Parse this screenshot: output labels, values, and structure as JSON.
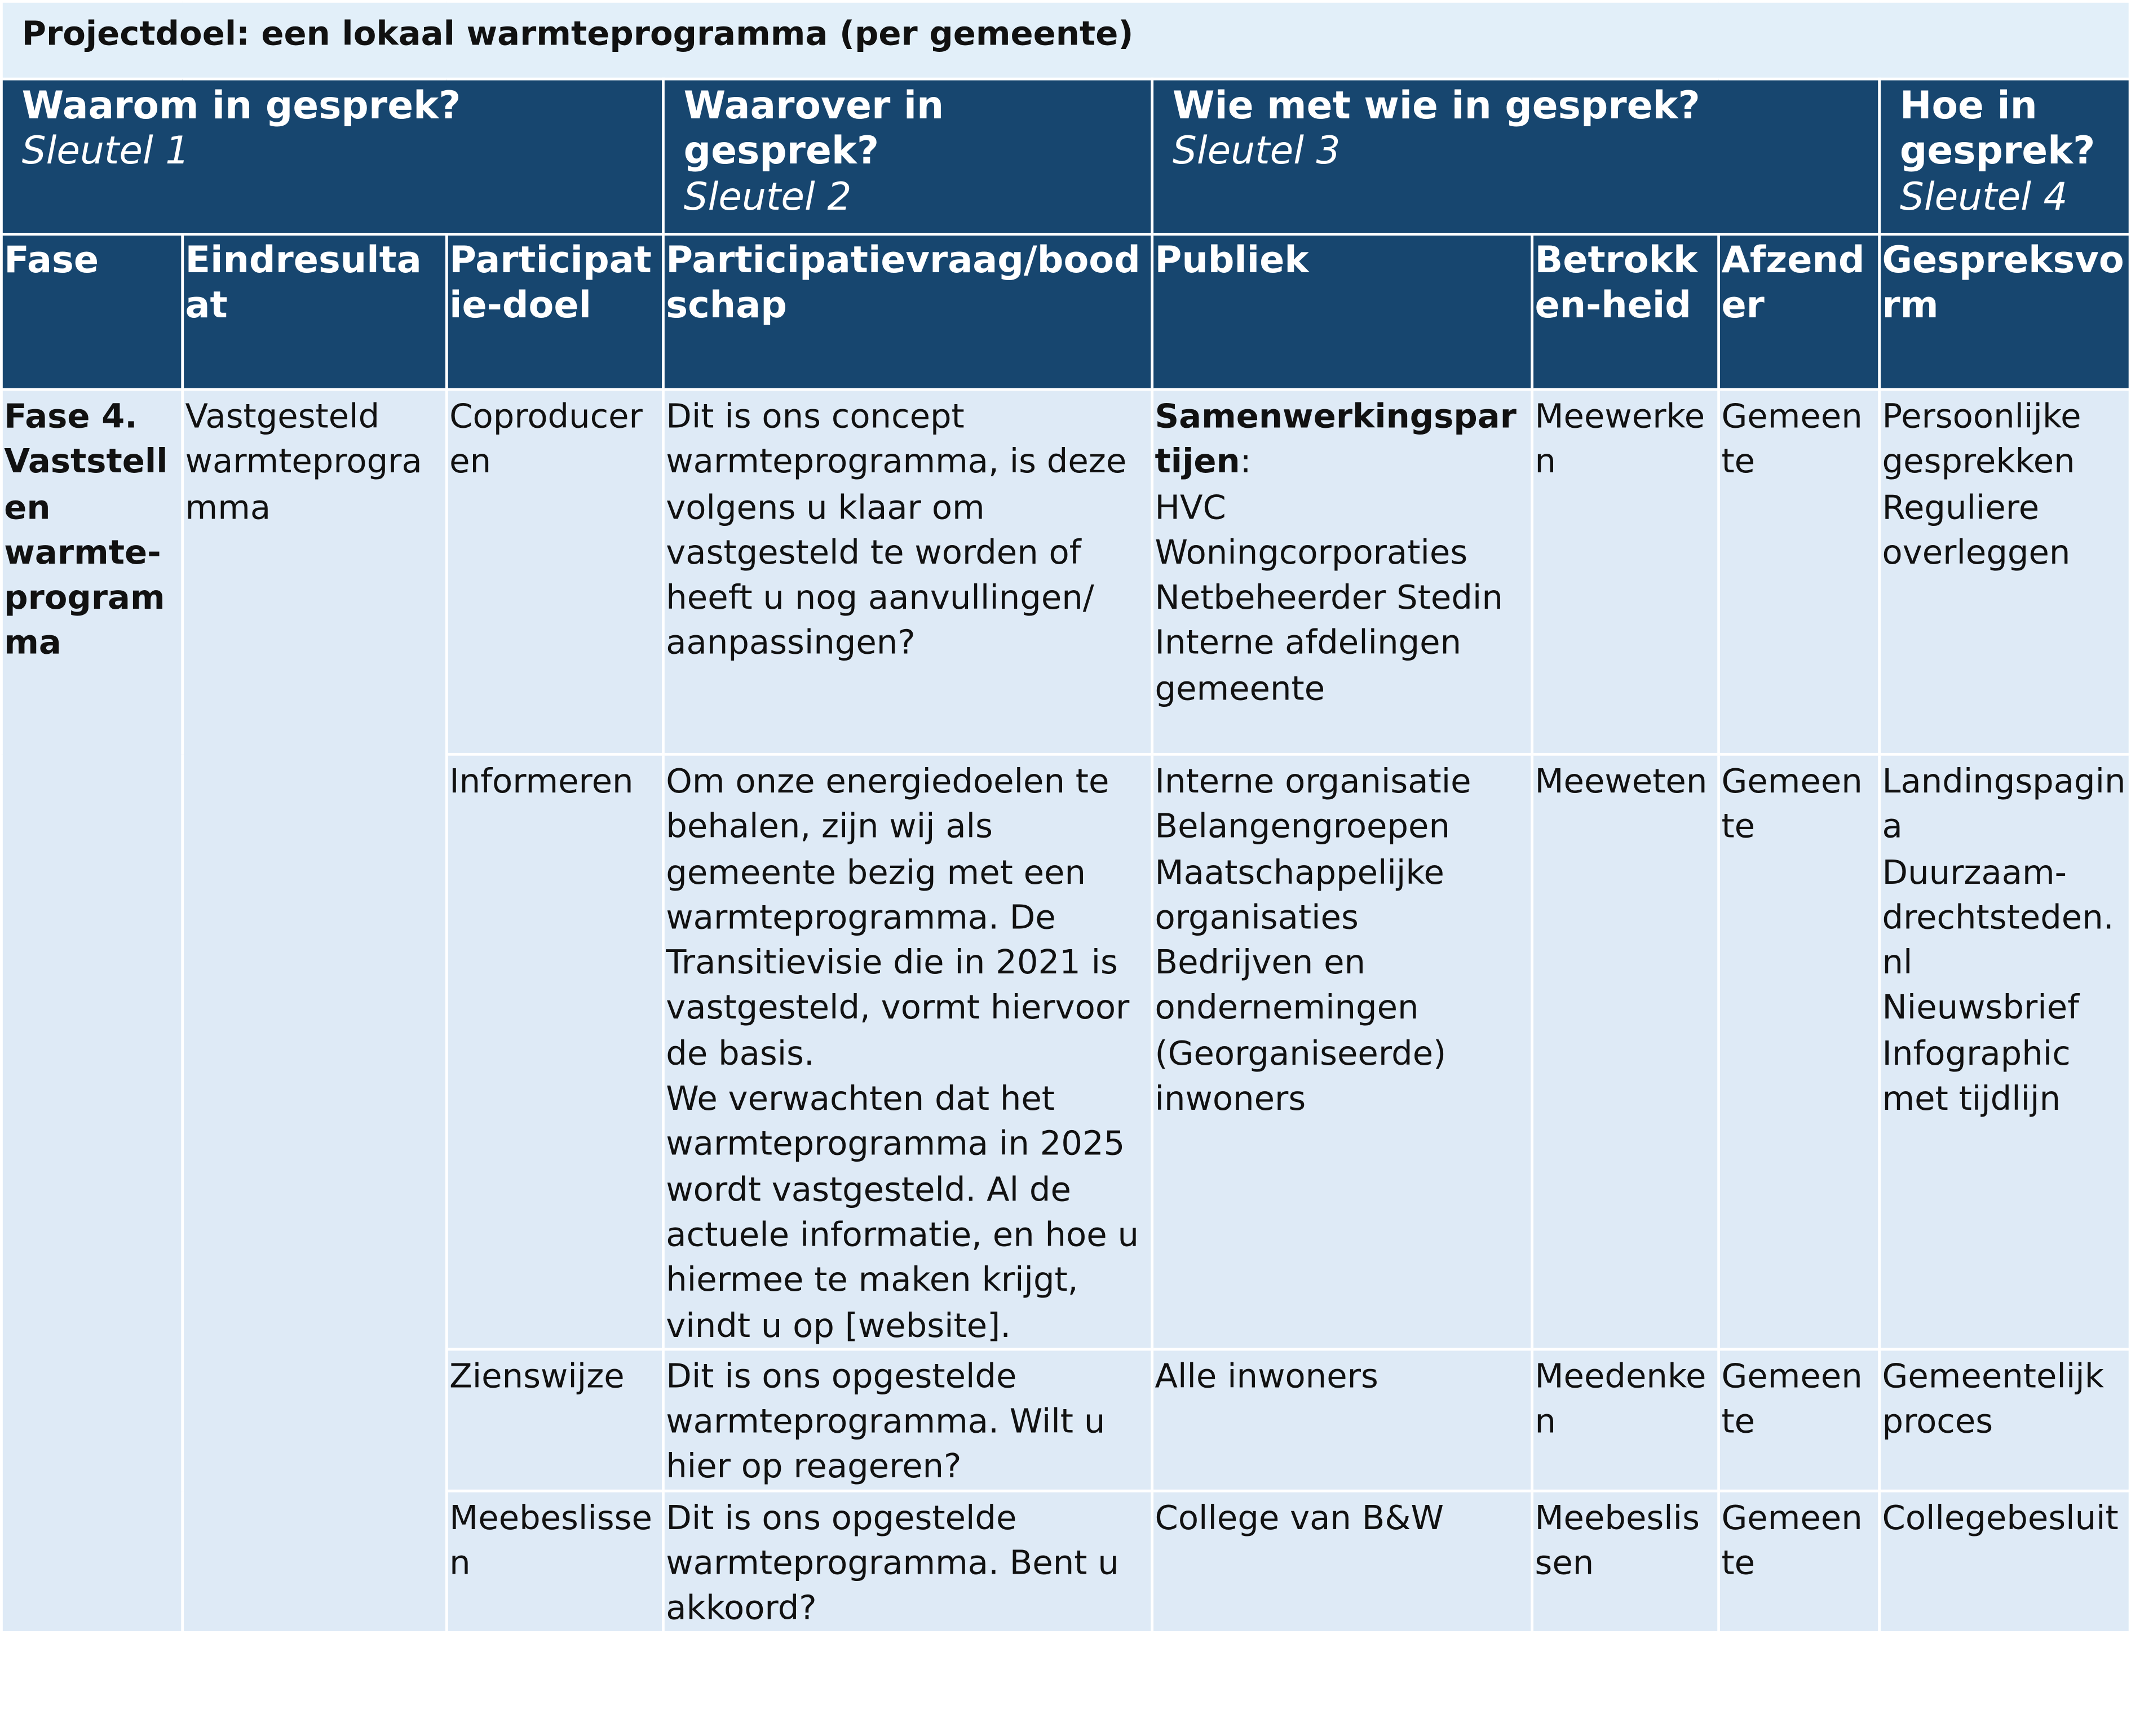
{
  "title": "Projectdoel: een lokaal warmteprogramma (per gemeente)",
  "group_headers": [
    {
      "title": "Waarom in gesprek?",
      "key": "Sleutel 1"
    },
    {
      "title": "Waarover in gesprek?",
      "key": "Sleutel 2"
    },
    {
      "title": "Wie met wie in gesprek?",
      "key": "Sleutel 3"
    },
    {
      "title": "Hoe in gesprek?",
      "key": "Sleutel 4"
    }
  ],
  "column_headers": [
    "Fase",
    "Eindresultaat",
    "Participatie-doel",
    "Participatievraag/boodschap",
    "Publiek",
    "Betrokken-heid",
    "Afzender",
    "Gespreksvorm"
  ],
  "fase": "Fase 4. Vaststellen warmte-programma",
  "eindresultaat": "Vastgesteld warmteprogramma",
  "rows": [
    {
      "doel": "Coproduceren",
      "vraag": [
        "Dit is ons concept warmteprogramma, is deze volgens u klaar om vastgesteld te worden of heeft u nog aanvullingen/ aanpassingen?"
      ],
      "publiek_label": "Samenwerkingspartijen",
      "publiek_label_suffix": ":",
      "publiek": [
        "HVC",
        "Woningcorporaties",
        "Netbeheerder Stedin",
        "Interne afdelingen gemeente"
      ],
      "betrokkenheid": "Meewerken",
      "afzender": "Gemeente",
      "vorm": [
        "Persoonlijke gesprekken",
        "Reguliere overleggen"
      ]
    },
    {
      "doel": "Informeren",
      "vraag": [
        "Om onze energiedoelen te behalen, zijn wij als gemeente bezig met een warmteprogramma. De Transitievisie die in 2021 is vastgesteld, vormt hiervoor de basis.",
        "We verwachten dat het warmteprogramma in 2025 wordt vastgesteld. Al de actuele informatie, en hoe u hiermee te maken krijgt, vindt u op [website]."
      ],
      "publiek": [
        "Interne organisatie",
        "Belangengroepen",
        "Maatschappelijke organisaties",
        "Bedrijven en ondernemingen",
        "(Georganiseerde) inwoners"
      ],
      "betrokkenheid": "Meeweten",
      "afzender": "Gemeente",
      "vorm": [
        "Landingspagina",
        "Duurzaam-drechtsteden.nl",
        "Nieuwsbrief",
        "Infographic met tijdlijn"
      ]
    },
    {
      "doel": "Zienswijze",
      "vraag": [
        "Dit is ons opgestelde warmteprogramma. Wilt u hier op reageren?"
      ],
      "publiek": [
        "Alle inwoners"
      ],
      "betrokkenheid": "Meedenken",
      "afzender": "Gemeente",
      "vorm": [
        "Gemeentelijk proces"
      ]
    },
    {
      "doel": "Meebeslissen",
      "vraag": [
        "Dit is ons opgestelde warmteprogramma. Bent u akkoord?"
      ],
      "publiek": [
        "College van B&W"
      ],
      "betrokkenheid": "Meebeslissen",
      "afzender": "Gemeente",
      "vorm": [
        "Collegebesluit"
      ]
    }
  ]
}
